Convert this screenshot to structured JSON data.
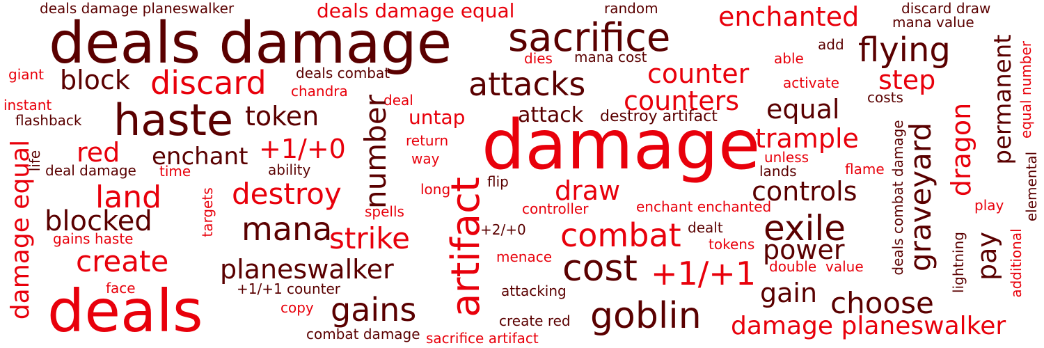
{
  "palette": {
    "bright_red": "#e8000b",
    "dark_maroon": "#5a0000",
    "maroon": "#8c0000",
    "crimson": "#b40000",
    "background": "#ffffff"
  },
  "words": {
    "deals_damage_planeswalker": "deals damage planeswalker",
    "deals_damage_equal": "deals damage equal",
    "random": "random",
    "discard_draw": "discard draw",
    "mana_value": "mana value",
    "deals_damage": "deals damage",
    "sacrifice": "sacrifice",
    "enchanted": "enchanted",
    "flying": "flying",
    "add": "add",
    "able": "able",
    "dies": "dies",
    "mana_cost": "mana cost",
    "giant": "giant",
    "block": "block",
    "discard": "discard",
    "deals_combat": "deals combat",
    "counter": "counter",
    "attacks": "attacks",
    "step": "step",
    "activate": "activate",
    "chandra": "chandra",
    "deal": "deal",
    "instant": "instant",
    "haste": "haste",
    "counters": "counters",
    "costs": "costs",
    "flashback": "flashback",
    "token": "token",
    "untap": "untap",
    "attack": "attack",
    "destroy_artifact": "destroy artifact",
    "equal": "equal",
    "damage": "damage",
    "red": "red",
    "enchant": "enchant",
    "plus_one_zero": "+1/+0",
    "return": "return",
    "trample": "trample",
    "way": "way",
    "unless": "unless",
    "deal_damage": "deal damage",
    "time": "time",
    "ability": "ability",
    "lands": "lands",
    "flame": "flame",
    "land": "land",
    "destroy": "destroy",
    "draw": "draw",
    "long": "long",
    "flip": "flip",
    "controls": "controls",
    "controller": "controller",
    "enchant_enchanted": "enchant enchanted",
    "play": "play",
    "blocked": "blocked",
    "spells": "spells",
    "mana": "mana",
    "exile": "exile",
    "strike": "strike",
    "combat": "combat",
    "plus_two_zero": "+2/+0",
    "dealt": "dealt",
    "gains_haste": "gains haste",
    "tokens": "tokens",
    "power": "power",
    "create": "create",
    "menace": "menace",
    "double": "double",
    "value": "value",
    "planeswalker": "planeswalker",
    "cost": "cost",
    "plus_one_one": "+1/+1",
    "face": "face",
    "plus_one_one_counter": "+1/+1 counter",
    "attacking": "attacking",
    "gain": "gain",
    "choose": "choose",
    "deals": "deals",
    "gains": "gains",
    "copy": "copy",
    "goblin": "goblin",
    "create_red": "create red",
    "damage_planeswalker": "damage planeswalker",
    "combat_damage": "combat damage",
    "sacrifice_artifact": "sacrifice artifact",
    "life": "life",
    "damage_equal": "damage equal",
    "number": "number",
    "artifact": "artifact",
    "targets": "targets",
    "graveyard": "graveyard",
    "dragon": "dragon",
    "permanent": "permanent",
    "pay": "pay",
    "deals_combat_damage": "deals combat damage",
    "lightning": "lightning",
    "additional": "additional",
    "elemental": "elemental",
    "equal_number": "equal number"
  }
}
